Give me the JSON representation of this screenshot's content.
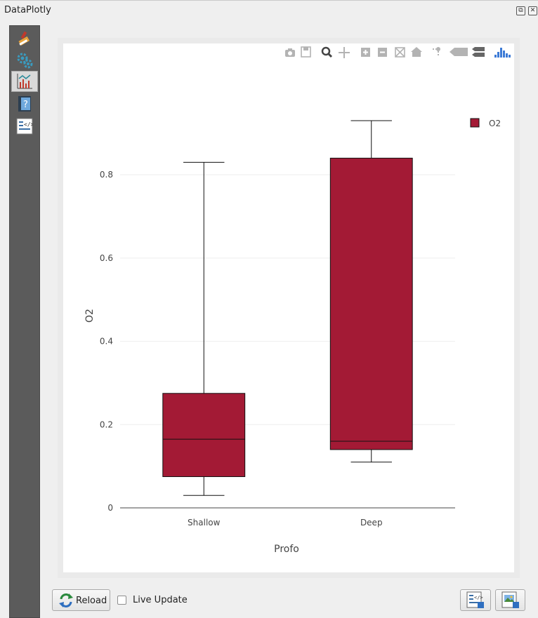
{
  "window": {
    "title": "DataPlotly"
  },
  "sidebar": {
    "items": [
      {
        "name": "plot-properties",
        "icon": "paintbrush-icon"
      },
      {
        "name": "settings",
        "icon": "gears-icon"
      },
      {
        "name": "plot-view",
        "icon": "chart-icon",
        "active": true
      },
      {
        "name": "help",
        "icon": "help-book-icon"
      },
      {
        "name": "raw-html",
        "icon": "code-icon"
      }
    ]
  },
  "toolbar": {
    "reload_label": "Reload",
    "live_update_label": "Live Update",
    "live_update_checked": false
  },
  "modebar": [
    "camera-icon",
    "save-icon",
    "zoom-icon",
    "pan-icon",
    "zoom-in-icon",
    "zoom-out-icon",
    "autoscale-icon",
    "reset-axes-icon",
    "spike-lines-icon",
    "hover-closest-icon",
    "hover-compare-icon",
    "plotly-logo-icon"
  ],
  "chart_data": {
    "type": "box",
    "xlabel": "Profo",
    "ylabel": "O2",
    "categories": [
      "Shallow",
      "Deep"
    ],
    "ylim": [
      0,
      0.93
    ],
    "yticks": [
      0,
      0.2,
      0.4,
      0.6,
      0.8
    ],
    "ytick_labels": [
      "0",
      "0.2",
      "0.4",
      "0.6",
      "0.8"
    ],
    "grid": true,
    "legend_position": "top-right",
    "series": [
      {
        "name": "O2",
        "color": "#a31a35",
        "boxes": [
          {
            "category": "Shallow",
            "min": 0.03,
            "q1": 0.075,
            "median": 0.165,
            "q3": 0.275,
            "max": 0.83
          },
          {
            "category": "Deep",
            "min": 0.11,
            "q1": 0.14,
            "median": 0.16,
            "q3": 0.84,
            "max": 0.93
          }
        ]
      }
    ]
  }
}
